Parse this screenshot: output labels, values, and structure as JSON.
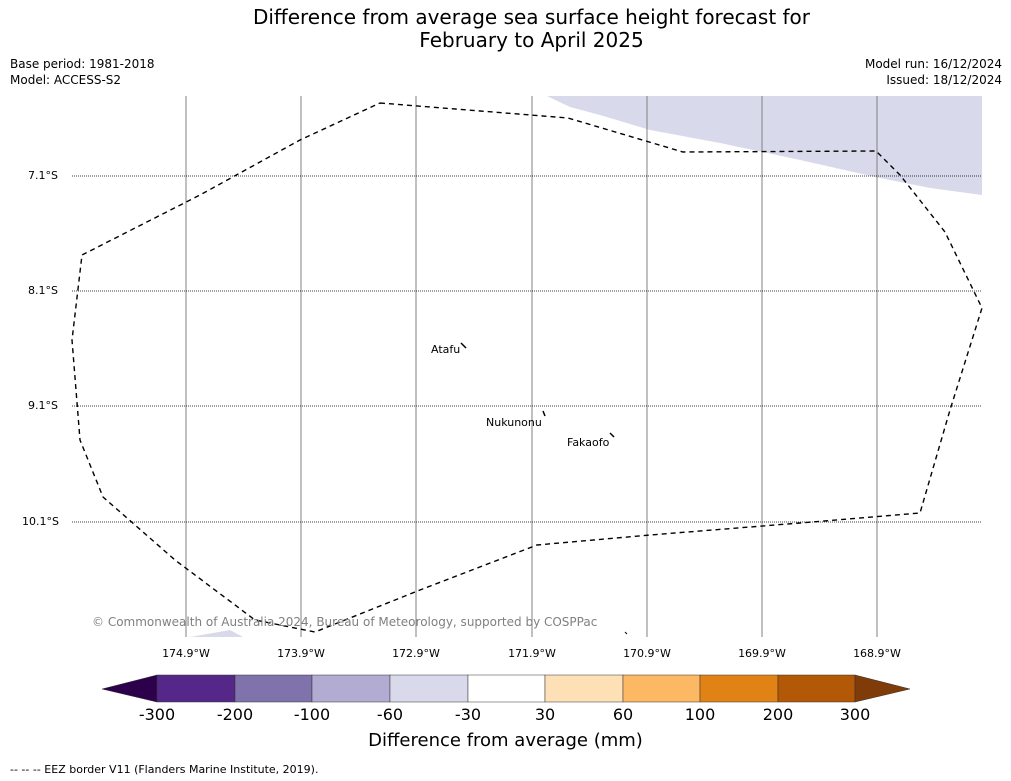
{
  "header": {
    "title_line1": "Difference from average sea surface height forecast for",
    "title_line2": "February to April 2025",
    "base_period": "Base period: 1981-2018",
    "model": "Model: ACCESS-S2",
    "model_run": "Model run: 16/12/2024",
    "issued": "Issued: 18/12/2024"
  },
  "map": {
    "latitudes": [
      "7.1°S",
      "8.1°S",
      "9.1°S",
      "10.1°S"
    ],
    "longitudes": [
      "174.9°W",
      "173.9°W",
      "172.9°W",
      "171.9°W",
      "170.9°W",
      "169.9°W",
      "168.9°W"
    ],
    "places": [
      "Atafu",
      "Nukunonu",
      "Fakaofo"
    ],
    "copyright": "© Commonwealth of Australia 2024, Bureau of Meteorology, supported by COSPPac",
    "border_line_style": "dashed",
    "shading_category": "-60 to -30"
  },
  "colorbar": {
    "ticks": [
      "-300",
      "-200",
      "-100",
      "-60",
      "-30",
      "30",
      "60",
      "100",
      "200",
      "300"
    ],
    "label": "Difference from average (mm)",
    "colors": [
      "#2d004b",
      "#542788",
      "#8073ac",
      "#b2abd2",
      "#d8daeb",
      "#ffffff",
      "#fee0b6",
      "#fdb863",
      "#e08214",
      "#b35806",
      "#7f3b08"
    ]
  },
  "footer": {
    "legend_text": "--  --  -- EEZ border V11 (Flanders Marine Institute, 2019)."
  }
}
